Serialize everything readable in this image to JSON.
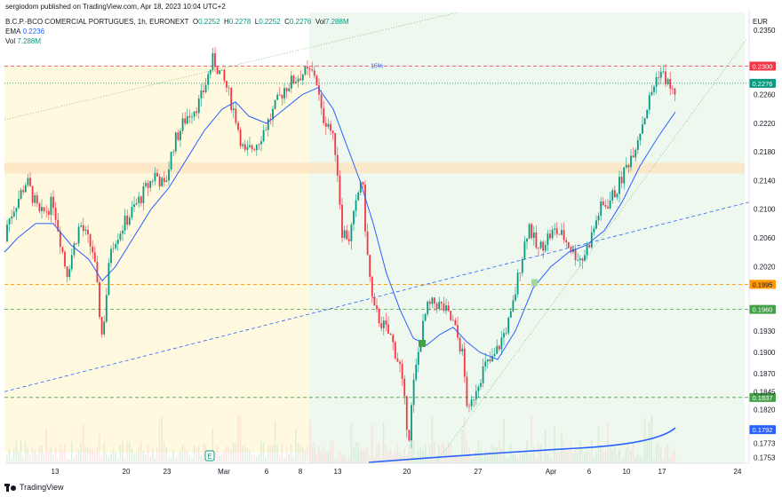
{
  "header": {
    "published": "sergiodom published on TradingView.com, Apr 18, 2023 10:04 UTC+2",
    "symbol": "B.C.P.-BCO COMERCIAL PORTUGUES, 1h, EURONEXT",
    "o_label": "O",
    "o_val": "0.2252",
    "h_label": "H",
    "h_val": "0.2278",
    "l_label": "L",
    "l_val": "0.2252",
    "c_label": "C",
    "c_val": "0.2276",
    "vol_label": "Vol",
    "vol_val": "7.288M",
    "ema_label": "EMA",
    "ema_val": "0.2236",
    "vol2_label": "Vol",
    "vol2_val": "7.288M"
  },
  "currency": "EUR",
  "footer": {
    "brand": "TradingView"
  },
  "colors": {
    "up": "#089981",
    "down": "#f23645",
    "ema": "#2962ff",
    "orange": "#ff9800",
    "green": "#43a047",
    "red": "#f23645",
    "yellow_zone": "#fff9e0",
    "green_zone": "#eef8ee"
  },
  "chart_data": {
    "type": "candlestick",
    "title": "B.C.P.-BCO COMERCIAL PORTUGUES, 1h, EURONEXT",
    "xlabel": "",
    "ylabel": "EUR",
    "ylim": [
      0.1745,
      0.2375
    ],
    "y_ticks": [
      0.235,
      0.226,
      0.222,
      0.218,
      0.214,
      0.21,
      0.206,
      0.202,
      0.193,
      0.19,
      0.187,
      0.1845,
      0.182,
      0.1773,
      0.1753
    ],
    "y_tick_labels": [
      "0.2350",
      "0.2260",
      "0.2220",
      "0.2180",
      "0.2140",
      "0.2100",
      "0.2060",
      "0.2020",
      "0.1930",
      "0.1900",
      "0.1870",
      "0.1845",
      "0.1820",
      "0.1773",
      "0.1753"
    ],
    "x_ticks": [
      "13",
      "20",
      "23",
      "Mar",
      "6",
      "8",
      "13",
      "20",
      "27",
      "Apr",
      "6",
      "10",
      "17",
      "24"
    ],
    "price_path": [
      [
        0,
        0.2055
      ],
      [
        15,
        0.21
      ],
      [
        30,
        0.214
      ],
      [
        45,
        0.209
      ],
      [
        60,
        0.211
      ],
      [
        75,
        0.201
      ],
      [
        90,
        0.208
      ],
      [
        105,
        0.204
      ],
      [
        115,
        0.192
      ],
      [
        125,
        0.205
      ],
      [
        140,
        0.208
      ],
      [
        160,
        0.212
      ],
      [
        175,
        0.215
      ],
      [
        185,
        0.213
      ],
      [
        195,
        0.219
      ],
      [
        210,
        0.223
      ],
      [
        225,
        0.225
      ],
      [
        240,
        0.231
      ],
      [
        255,
        0.227
      ],
      [
        265,
        0.223
      ],
      [
        275,
        0.2175
      ],
      [
        290,
        0.2195
      ],
      [
        305,
        0.223
      ],
      [
        320,
        0.227
      ],
      [
        340,
        0.229
      ],
      [
        355,
        0.229
      ],
      [
        362,
        0.223
      ],
      [
        370,
        0.222
      ],
      [
        378,
        0.218
      ],
      [
        385,
        0.207
      ],
      [
        393,
        0.206
      ],
      [
        400,
        0.21
      ],
      [
        407,
        0.215
      ],
      [
        413,
        0.204
      ],
      [
        420,
        0.196
      ],
      [
        430,
        0.194
      ],
      [
        440,
        0.192
      ],
      [
        450,
        0.188
      ],
      [
        460,
        0.178
      ],
      [
        465,
        0.185
      ],
      [
        472,
        0.191
      ],
      [
        480,
        0.196
      ],
      [
        490,
        0.197
      ],
      [
        500,
        0.196
      ],
      [
        510,
        0.194
      ],
      [
        520,
        0.19
      ],
      [
        527,
        0.181
      ],
      [
        535,
        0.185
      ],
      [
        545,
        0.188
      ],
      [
        555,
        0.189
      ],
      [
        565,
        0.192
      ],
      [
        575,
        0.195
      ],
      [
        585,
        0.202
      ],
      [
        595,
        0.208
      ],
      [
        605,
        0.204
      ],
      [
        615,
        0.206
      ],
      [
        625,
        0.207
      ],
      [
        635,
        0.206
      ],
      [
        645,
        0.204
      ],
      [
        655,
        0.203
      ],
      [
        665,
        0.206
      ],
      [
        675,
        0.21
      ],
      [
        685,
        0.211
      ],
      [
        695,
        0.213
      ],
      [
        705,
        0.216
      ],
      [
        715,
        0.219
      ],
      [
        725,
        0.223
      ],
      [
        735,
        0.227
      ],
      [
        742,
        0.2295
      ],
      [
        750,
        0.228
      ],
      [
        758,
        0.226
      ],
      [
        762,
        0.2276
      ]
    ],
    "ema_path": [
      [
        5,
        0.204
      ],
      [
        20,
        0.206
      ],
      [
        40,
        0.208
      ],
      [
        60,
        0.208
      ],
      [
        80,
        0.205
      ],
      [
        100,
        0.203
      ],
      [
        115,
        0.2
      ],
      [
        130,
        0.202
      ],
      [
        150,
        0.206
      ],
      [
        170,
        0.21
      ],
      [
        190,
        0.213
      ],
      [
        210,
        0.217
      ],
      [
        230,
        0.221
      ],
      [
        250,
        0.224
      ],
      [
        265,
        0.225
      ],
      [
        280,
        0.223
      ],
      [
        300,
        0.222
      ],
      [
        320,
        0.224
      ],
      [
        340,
        0.226
      ],
      [
        358,
        0.227
      ],
      [
        375,
        0.224
      ],
      [
        390,
        0.219
      ],
      [
        405,
        0.214
      ],
      [
        420,
        0.208
      ],
      [
        435,
        0.201
      ],
      [
        450,
        0.196
      ],
      [
        465,
        0.192
      ],
      [
        480,
        0.191
      ],
      [
        495,
        0.1925
      ],
      [
        510,
        0.1935
      ],
      [
        525,
        0.1915
      ],
      [
        540,
        0.19
      ],
      [
        560,
        0.189
      ],
      [
        580,
        0.193
      ],
      [
        600,
        0.199
      ],
      [
        620,
        0.202
      ],
      [
        640,
        0.204
      ],
      [
        660,
        0.205
      ],
      [
        680,
        0.207
      ],
      [
        700,
        0.211
      ],
      [
        720,
        0.216
      ],
      [
        740,
        0.22
      ],
      [
        760,
        0.2236
      ]
    ],
    "levels": [
      {
        "price": 0.23,
        "label": "0.2300",
        "color": "#f23645",
        "style": "dashed"
      },
      {
        "price": 0.2276,
        "label": "0.2276",
        "color": "#089981",
        "style": "dotted"
      },
      {
        "price": 0.1995,
        "label": "0.1995",
        "color": "#ff9800",
        "style": "dashed"
      },
      {
        "price": 0.196,
        "label": "0.1960",
        "color": "#43a047",
        "style": "dashed"
      },
      {
        "price": 0.1837,
        "label": "0.1837",
        "color": "#43a047",
        "style": "dashed"
      },
      {
        "price": 0.1792,
        "label": "0.1792",
        "color": "#2962ff",
        "style": "none"
      }
    ],
    "annotations": {
      "pct_label": "15%"
    },
    "ema": {
      "name": "EMA",
      "last": 0.2236
    },
    "volume": {
      "last": "7.288M"
    }
  }
}
